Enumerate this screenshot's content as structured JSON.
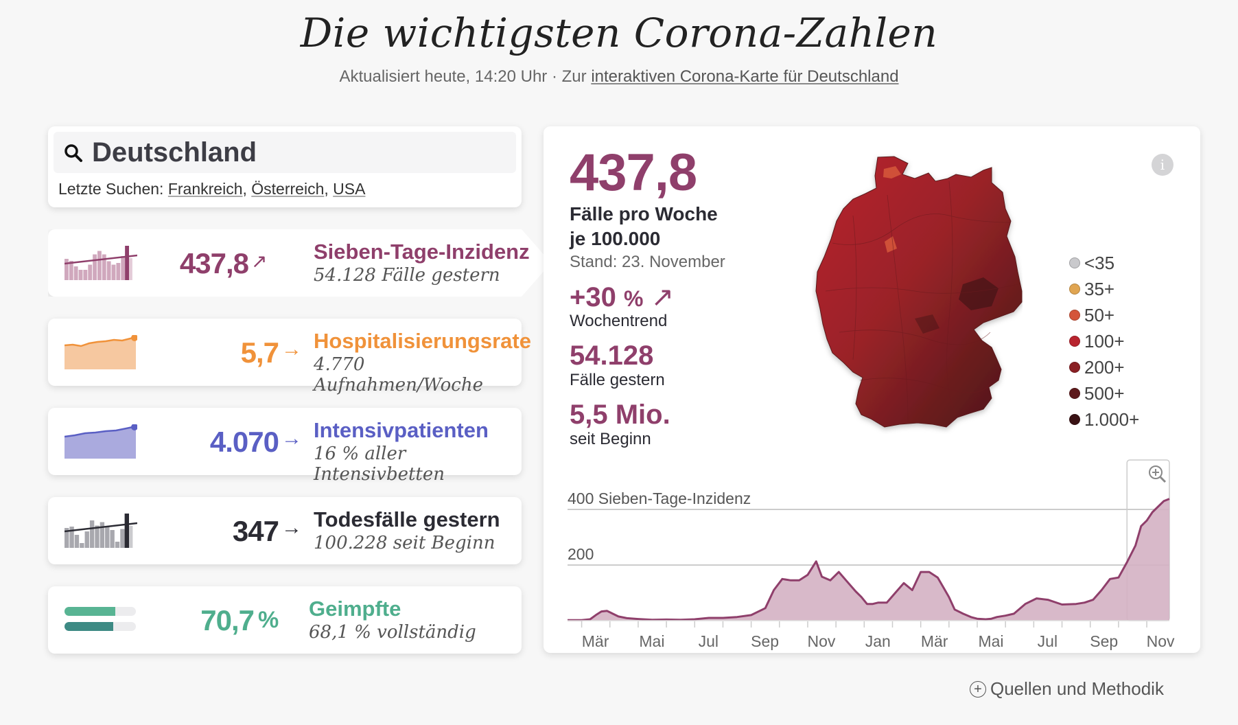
{
  "header": {
    "title": "Die wichtigsten Corona-Zahlen",
    "updated": "Aktualisiert heute, 14:20 Uhr",
    "separator": "·",
    "link_prefix": "Zur",
    "link_text": "interaktiven Corona-Karte für Deutschland"
  },
  "search": {
    "value": "Deutschland",
    "recent_label": "Letzte Suchen:",
    "recent": [
      "Frankreich",
      "Österreich",
      "USA"
    ]
  },
  "metrics": [
    {
      "value": "437,8",
      "arrow": "↗",
      "label": "Sieben-Tage-Inzidenz",
      "sub": "54.128 Fälle gestern",
      "color": "#8f3f6b"
    },
    {
      "value": "5,7",
      "arrow": "→",
      "label": "Hospitalisierungsrate",
      "sub": "4.770 Aufnahmen/Woche",
      "color": "#f0923a"
    },
    {
      "value": "4.070",
      "arrow": "→",
      "label": "Intensivpatienten",
      "sub": "16 % aller Intensivbetten",
      "color": "#5a5fc4"
    },
    {
      "value": "347",
      "arrow": "→",
      "label": "Todesfälle gestern",
      "sub": "100.228 seit Beginn",
      "color": "#2b2b33"
    },
    {
      "value": "70,7",
      "unit": "%",
      "label": "Geimpfte",
      "sub": "68,1 % vollständig",
      "color": "#4fae8d",
      "bars": [
        0.707,
        0.681
      ],
      "bar_colors": [
        "#58b493",
        "#3d8a84"
      ]
    }
  ],
  "sparklines": {
    "incidence": [
      62,
      56,
      40,
      30,
      30,
      45,
      75,
      85,
      75,
      55,
      45,
      50,
      70
    ],
    "deaths": [
      58,
      62,
      38,
      14,
      48,
      80,
      65,
      75,
      62,
      52,
      18,
      55
    ]
  },
  "detail": {
    "value": "437,8",
    "label_line1": "Fälle pro Woche",
    "label_line2": "je 100.000",
    "stand": "Stand: 23. November",
    "trend_value": "+30",
    "trend_unit": "%",
    "trend_arrow": "↗",
    "trend_label": "Wochentrend",
    "cases_value": "54.128",
    "cases_label": "Fälle gestern",
    "total_value": "5,5 Mio.",
    "total_label": "seit Beginn",
    "info_icon": "i"
  },
  "legend": [
    {
      "label": "<35",
      "color": "#c9c9cc"
    },
    {
      "label": "35+",
      "color": "#e0a552"
    },
    {
      "label": "50+",
      "color": "#d4553a"
    },
    {
      "label": "100+",
      "color": "#b8242f"
    },
    {
      "label": "200+",
      "color": "#8a2024"
    },
    {
      "label": "500+",
      "color": "#5e1a1c"
    },
    {
      "label": "1.000+",
      "color": "#3a1214"
    }
  ],
  "chart_data": {
    "type": "area",
    "title": "Sieben-Tage-Inzidenz",
    "ylabel": "Sieben-Tage-Inzidenz",
    "ylim": [
      0,
      440
    ],
    "yticks": [
      200,
      400
    ],
    "ytick_labels": [
      "200",
      "400 Sieben-Tage-Inzidenz"
    ],
    "xtick_labels": [
      "Mär",
      "Mai",
      "Jul",
      "Sep",
      "Nov",
      "Jan",
      "Mär",
      "Mai",
      "Jul",
      "Sep",
      "Nov"
    ],
    "x_unit": "months since 2020-02-15",
    "x_range": [
      0,
      21.3
    ],
    "grid": true,
    "color": "#8f3f6b",
    "fill": "#d4b1c3",
    "x": [
      0,
      0.5,
      0.8,
      1.0,
      1.2,
      1.4,
      1.6,
      1.8,
      2.1,
      2.5,
      3.0,
      3.5,
      4.0,
      4.5,
      5.0,
      5.5,
      6.0,
      6.5,
      7.0,
      7.3,
      7.6,
      7.9,
      8.2,
      8.5,
      8.8,
      9.0,
      9.3,
      9.6,
      9.9,
      10.2,
      10.4,
      10.6,
      10.8,
      11.0,
      11.3,
      11.6,
      11.9,
      12.2,
      12.5,
      12.8,
      13.1,
      13.3,
      13.5,
      13.7,
      14.0,
      14.3,
      14.5,
      14.8,
      15.0,
      15.2,
      15.5,
      15.8,
      16.2,
      16.6,
      17.0,
      17.5,
      18.0,
      18.3,
      18.6,
      18.9,
      19.2,
      19.5,
      19.8,
      20.1,
      20.3,
      20.5,
      20.7,
      20.9,
      21.1,
      21.3
    ],
    "y": [
      2,
      2,
      5,
      20,
      33,
      35,
      25,
      15,
      9,
      6,
      3,
      4,
      3,
      5,
      10,
      10,
      13,
      20,
      45,
      110,
      150,
      145,
      145,
      165,
      213,
      158,
      145,
      175,
      140,
      105,
      85,
      60,
      60,
      65,
      65,
      100,
      135,
      110,
      175,
      175,
      155,
      120,
      85,
      40,
      25,
      12,
      7,
      5,
      7,
      13,
      18,
      25,
      60,
      80,
      75,
      58,
      60,
      65,
      75,
      110,
      150,
      155,
      210,
      270,
      340,
      360,
      390,
      410,
      430,
      438
    ]
  },
  "footer": {
    "icon": "plus-circle-icon",
    "label": "Quellen und Methodik"
  }
}
